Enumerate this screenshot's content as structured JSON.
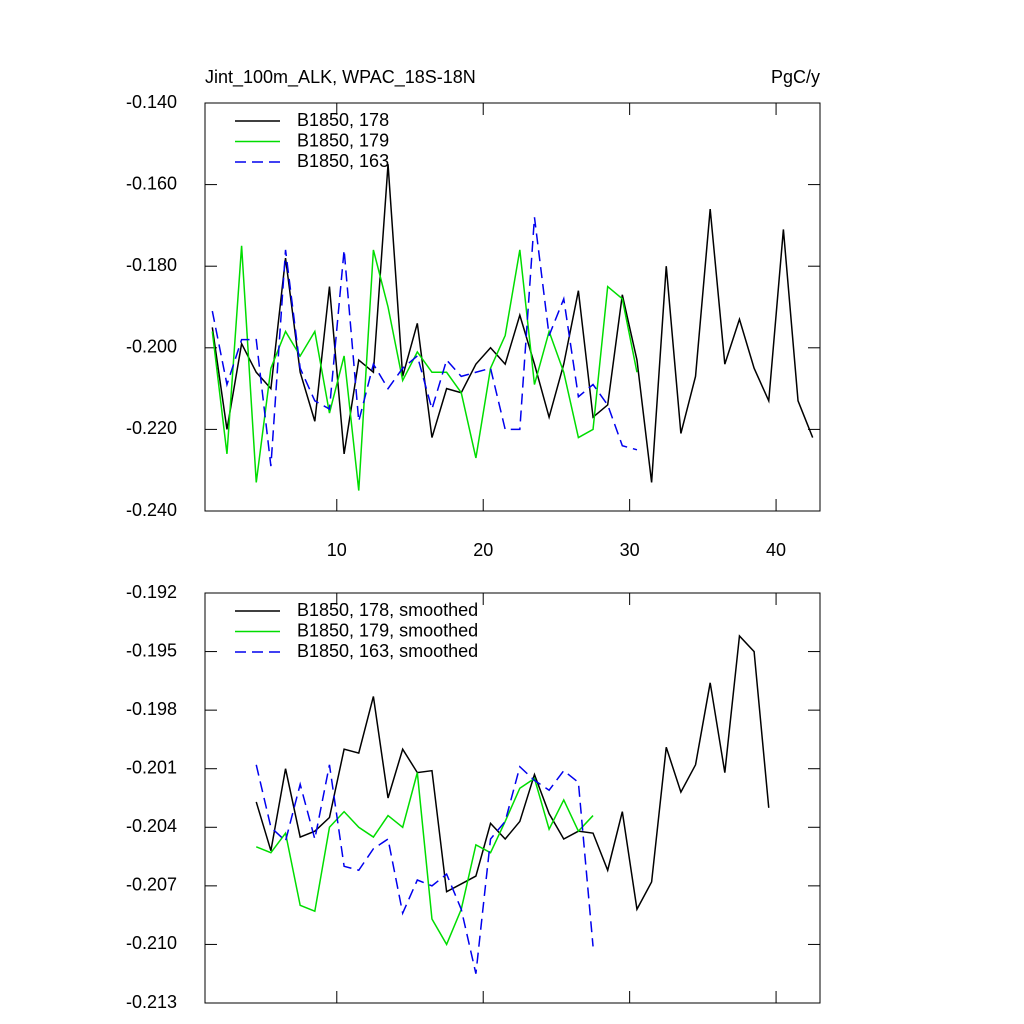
{
  "chart_data": [
    {
      "type": "line",
      "title": "Jint_100m_ALK, WPAC_18S-18N",
      "subtitle": "PgC/y",
      "xlim": [
        1,
        43
      ],
      "xticks": [
        10,
        20,
        30,
        40
      ],
      "ylim": [
        -0.24,
        -0.14
      ],
      "yticks": [
        {
          "value": -0.24,
          "label": "-0.240"
        },
        {
          "value": -0.22,
          "label": "-0.220"
        },
        {
          "value": -0.2,
          "label": "-0.200"
        },
        {
          "value": -0.18,
          "label": "-0.180"
        },
        {
          "value": -0.16,
          "label": "-0.160"
        },
        {
          "value": -0.14,
          "label": "-0.140"
        }
      ],
      "legend": "upper left",
      "series": [
        {
          "name": "B1850, 178",
          "color": "#000000",
          "dash": false,
          "x": [
            1.5,
            2.5,
            3.5,
            4.5,
            5.5,
            6.5,
            7.5,
            8.5,
            9.5,
            10.5,
            11.5,
            12.5,
            13.5,
            14.5,
            15.5,
            16.5,
            17.5,
            18.5,
            19.5,
            20.5,
            21.5,
            22.5,
            23.5,
            24.5,
            25.5,
            26.5,
            27.5,
            28.5,
            29.5,
            30.5,
            31.5,
            32.5,
            33.5,
            34.5,
            35.5,
            36.5,
            37.5,
            38.5,
            39.5,
            40.5,
            41.5,
            42.5
          ],
          "values": [
            -0.195,
            -0.22,
            -0.199,
            -0.206,
            -0.21,
            -0.178,
            -0.206,
            -0.218,
            -0.185,
            -0.226,
            -0.203,
            -0.206,
            -0.155,
            -0.207,
            -0.194,
            -0.222,
            -0.21,
            -0.211,
            -0.204,
            -0.2,
            -0.204,
            -0.192,
            -0.204,
            -0.217,
            -0.204,
            -0.186,
            -0.217,
            -0.214,
            -0.187,
            -0.203,
            -0.233,
            -0.18,
            -0.221,
            -0.207,
            -0.166,
            -0.204,
            -0.193,
            -0.205,
            -0.213,
            -0.171,
            -0.213,
            -0.222
          ]
        },
        {
          "name": "B1850, 179",
          "color": "#00dd00",
          "dash": false,
          "x": [
            1.5,
            2.5,
            3.5,
            4.5,
            5.5,
            6.5,
            7.5,
            8.5,
            9.5,
            10.5,
            11.5,
            12.5,
            13.5,
            14.5,
            15.5,
            16.5,
            17.5,
            18.5,
            19.5,
            20.5,
            21.5,
            22.5,
            23.5,
            24.5,
            25.5,
            26.5,
            27.5,
            28.5,
            29.5,
            30.5
          ],
          "values": [
            -0.196,
            -0.226,
            -0.175,
            -0.233,
            -0.205,
            -0.196,
            -0.202,
            -0.196,
            -0.216,
            -0.202,
            -0.235,
            -0.176,
            -0.19,
            -0.208,
            -0.201,
            -0.206,
            -0.206,
            -0.211,
            -0.227,
            -0.205,
            -0.197,
            -0.176,
            -0.209,
            -0.196,
            -0.206,
            -0.222,
            -0.22,
            -0.185,
            -0.188,
            -0.206
          ]
        },
        {
          "name": "B1850, 163",
          "color": "#0000ee",
          "dash": true,
          "x": [
            1.5,
            2.5,
            3.5,
            4.5,
            5.5,
            6.5,
            7.5,
            8.5,
            9.5,
            10.5,
            11.5,
            12.5,
            13.5,
            14.5,
            15.5,
            16.5,
            17.5,
            18.5,
            19.5,
            20.5,
            21.5,
            22.5,
            23.5,
            24.5,
            25.5,
            26.5,
            27.5,
            28.5,
            29.5,
            30.5
          ],
          "values": [
            -0.191,
            -0.209,
            -0.198,
            -0.198,
            -0.229,
            -0.176,
            -0.205,
            -0.213,
            -0.215,
            -0.176,
            -0.218,
            -0.204,
            -0.21,
            -0.205,
            -0.202,
            -0.215,
            -0.203,
            -0.207,
            -0.206,
            -0.205,
            -0.22,
            -0.22,
            -0.168,
            -0.197,
            -0.188,
            -0.212,
            -0.209,
            -0.214,
            -0.224,
            -0.225
          ]
        }
      ]
    },
    {
      "type": "line",
      "xlim": [
        1,
        43
      ],
      "xticks": [
        10,
        20,
        30,
        40
      ],
      "ylim": [
        -0.213,
        -0.192
      ],
      "yticks": [
        {
          "value": -0.213,
          "label": "-0.213"
        },
        {
          "value": -0.21,
          "label": "-0.210"
        },
        -0.207,
        -0.204,
        -0.201,
        -0.198,
        -0.195,
        -0.192
      ],
      "legend": "upper left",
      "series": [
        {
          "name": "B1850, 178, smoothed",
          "color": "#000000",
          "dash": false,
          "x": [
            4.5,
            5.5,
            6.5,
            7.5,
            8.5,
            9.5,
            10.5,
            11.5,
            12.5,
            13.5,
            14.5,
            15.5,
            16.5,
            17.5,
            18.5,
            19.5,
            20.5,
            21.5,
            22.5,
            23.5,
            24.5,
            25.5,
            26.5,
            27.5,
            28.5,
            29.5,
            30.5,
            31.5,
            32.5,
            33.5,
            34.5,
            35.5,
            36.5,
            37.5,
            38.5,
            39.5
          ],
          "values": [
            -0.2027,
            -0.2052,
            -0.201,
            -0.2045,
            -0.2042,
            -0.2035,
            -0.2,
            -0.2002,
            -0.1973,
            -0.2025,
            -0.2,
            -0.2012,
            -0.2011,
            -0.2073,
            -0.2069,
            -0.2065,
            -0.2038,
            -0.2046,
            -0.2037,
            -0.2013,
            -0.2033,
            -0.2046,
            -0.2042,
            -0.2043,
            -0.2062,
            -0.2032,
            -0.2082,
            -0.2068,
            -0.1999,
            -0.2022,
            -0.2008,
            -0.1966,
            -0.2012,
            -0.1942,
            -0.195,
            -0.203
          ]
        },
        {
          "name": "B1850, 179, smoothed",
          "color": "#00dd00",
          "dash": false,
          "x": [
            4.5,
            5.5,
            6.5,
            7.5,
            8.5,
            9.5,
            10.5,
            11.5,
            12.5,
            13.5,
            14.5,
            15.5,
            16.5,
            17.5,
            18.5,
            19.5,
            20.5,
            21.5,
            22.5,
            23.5,
            24.5,
            25.5,
            26.5,
            27.5
          ],
          "values": [
            -0.205,
            -0.2053,
            -0.2043,
            -0.208,
            -0.2083,
            -0.204,
            -0.2032,
            -0.204,
            -0.2045,
            -0.2034,
            -0.204,
            -0.2012,
            -0.2087,
            -0.21,
            -0.2082,
            -0.2049,
            -0.2053,
            -0.2037,
            -0.202,
            -0.2015,
            -0.2041,
            -0.2026,
            -0.2042,
            -0.2034
          ]
        },
        {
          "name": "B1850, 163, smoothed",
          "color": "#0000ee",
          "dash": true,
          "x": [
            4.5,
            5.5,
            6.5,
            7.5,
            8.5,
            9.5,
            10.5,
            11.5,
            12.5,
            13.5,
            14.5,
            15.5,
            16.5,
            17.5,
            18.5,
            19.5,
            20.5,
            21.5,
            22.5,
            23.5,
            24.5,
            25.5,
            26.5,
            27.5
          ],
          "values": [
            -0.2008,
            -0.204,
            -0.2047,
            -0.2018,
            -0.2046,
            -0.2008,
            -0.206,
            -0.2062,
            -0.2051,
            -0.2046,
            -0.2084,
            -0.2067,
            -0.207,
            -0.2064,
            -0.2082,
            -0.2115,
            -0.2046,
            -0.2037,
            -0.2009,
            -0.2016,
            -0.2021,
            -0.2011,
            -0.2017,
            -0.2101
          ]
        }
      ]
    }
  ]
}
